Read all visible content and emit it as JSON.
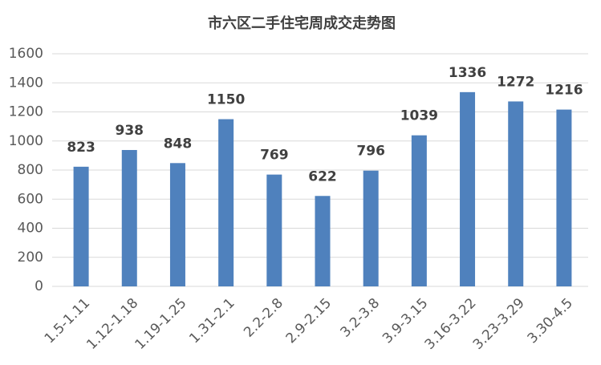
{
  "chart_data": {
    "type": "bar",
    "title": "市六区二手住宅周成交走势图",
    "categories": [
      "1.5-1.11",
      "1.12-1.18",
      "1.19-1.25",
      "1.31-2.1",
      "2.2-2.8",
      "2.9-2.15",
      "3.2-3.8",
      "3.9-3.15",
      "3.16-3.22",
      "3.23-3.29",
      "3.30-4.5"
    ],
    "values": [
      823,
      938,
      848,
      1150,
      769,
      622,
      796,
      1039,
      1336,
      1272,
      1216
    ],
    "color": "#4f81bd",
    "ylim": [
      0,
      1600
    ],
    "yticks": [
      0,
      200,
      400,
      600,
      800,
      1000,
      1200,
      1400,
      1600
    ],
    "grid": true
  }
}
